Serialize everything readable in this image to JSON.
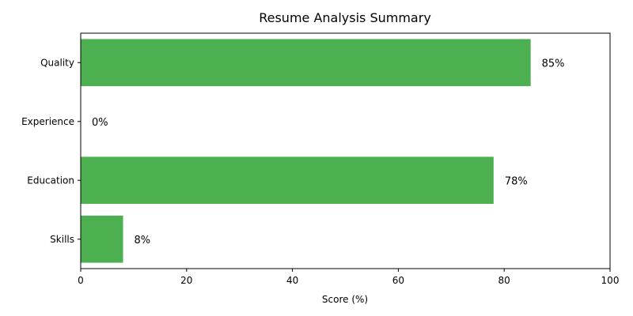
{
  "chart_data": {
    "type": "bar",
    "orientation": "horizontal",
    "title": "Resume Analysis Summary",
    "xlabel": "Score (%)",
    "ylabel": "",
    "categories": [
      "Skills",
      "Education",
      "Experience",
      "Quality"
    ],
    "values": [
      8,
      78,
      0,
      85
    ],
    "value_labels": [
      "8%",
      "78%",
      "0%",
      "85%"
    ],
    "xlim": [
      0,
      100
    ],
    "xticks": [
      0,
      20,
      40,
      60,
      80,
      100
    ],
    "xtick_labels": [
      "0",
      "20",
      "40",
      "60",
      "80",
      "100"
    ],
    "bar_color": "#4caf50",
    "grid": false
  }
}
